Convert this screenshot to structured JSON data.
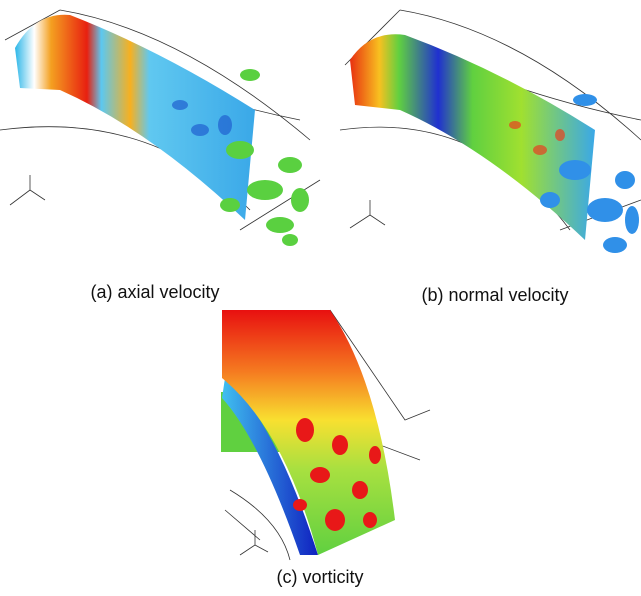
{
  "captions": {
    "a": "(a) axial velocity",
    "b": "(b) normal velocity",
    "c": "(c) vorticity"
  }
}
